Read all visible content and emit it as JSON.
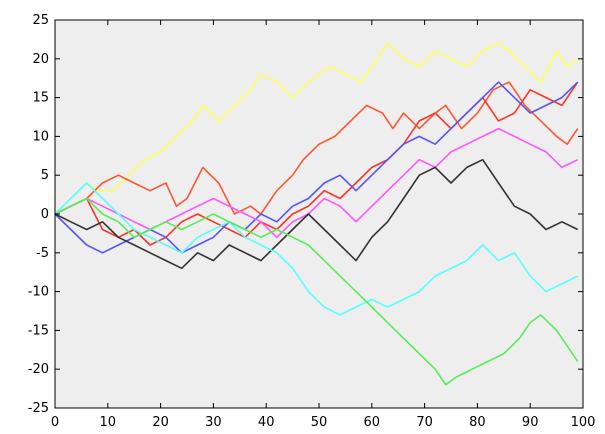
{
  "chart_data": {
    "type": "line",
    "title": "",
    "xlabel": "",
    "ylabel": "",
    "xlim": [
      0,
      100
    ],
    "ylim": [
      -25,
      25
    ],
    "x_ticks": [
      "0",
      "10",
      "20",
      "30",
      "40",
      "50",
      "60",
      "70",
      "80",
      "90",
      "100"
    ],
    "y_ticks": [
      "25",
      "20",
      "15",
      "10",
      "5",
      "0",
      "-5",
      "-10",
      "-15",
      "-20",
      "-25"
    ],
    "grid": false,
    "background_color": "#eeeeee",
    "series": [
      {
        "color": "#ffff55",
        "x": [
          0,
          3,
          6,
          8,
          11,
          14,
          17,
          20,
          23,
          26,
          28,
          31,
          34,
          37,
          39,
          42,
          45,
          48,
          52,
          55,
          58,
          61,
          63,
          66,
          69,
          72,
          75,
          78,
          81,
          84,
          86,
          89,
          92,
          95,
          97,
          99
        ],
        "y": [
          0,
          2,
          4,
          3,
          3,
          5,
          7,
          8,
          10,
          12,
          14,
          12,
          14,
          16,
          18,
          17,
          15,
          17,
          19,
          18,
          17,
          20,
          22,
          20,
          19,
          21,
          20,
          19,
          21,
          22,
          21,
          19,
          17,
          21,
          19,
          20
        ]
      },
      {
        "color": "#ff5533",
        "x": [
          0,
          3,
          6,
          9,
          12,
          15,
          18,
          21,
          23,
          25,
          28,
          31,
          34,
          37,
          39,
          42,
          45,
          47,
          50,
          53,
          56,
          59,
          62,
          64,
          66,
          69,
          72,
          74,
          77,
          80,
          83,
          86,
          89,
          92,
          95,
          97,
          99
        ],
        "y": [
          0,
          1,
          2,
          4,
          5,
          4,
          3,
          4,
          1,
          2,
          6,
          4,
          0,
          1,
          0,
          3,
          5,
          7,
          9,
          10,
          12,
          14,
          13,
          11,
          13,
          11,
          13,
          14,
          11,
          13,
          16,
          17,
          14,
          12,
          10,
          9,
          11
        ]
      },
      {
        "color": "#ff3322",
        "x": [
          0,
          3,
          6,
          9,
          12,
          15,
          18,
          21,
          24,
          27,
          30,
          33,
          36,
          39,
          42,
          45,
          48,
          51,
          54,
          57,
          60,
          63,
          66,
          69,
          72,
          75,
          78,
          81,
          84,
          87,
          90,
          93,
          96,
          99
        ],
        "y": [
          0,
          1,
          2,
          -2,
          -3,
          -2,
          -4,
          -3,
          -1,
          0,
          -1,
          -2,
          -3,
          -1,
          -2,
          0,
          1,
          3,
          2,
          4,
          6,
          7,
          9,
          12,
          13,
          11,
          13,
          15,
          12,
          13,
          16,
          15,
          14,
          17
        ]
      },
      {
        "color": "#5555ff",
        "x": [
          0,
          3,
          6,
          9,
          12,
          15,
          18,
          21,
          24,
          27,
          30,
          33,
          36,
          39,
          42,
          45,
          48,
          51,
          54,
          57,
          60,
          63,
          66,
          69,
          72,
          75,
          78,
          81,
          84,
          87,
          90,
          93,
          96,
          99
        ],
        "y": [
          0,
          -2,
          -4,
          -5,
          -4,
          -3,
          -2,
          -3,
          -5,
          -4,
          -3,
          -1,
          -2,
          0,
          -1,
          1,
          2,
          4,
          5,
          3,
          5,
          7,
          9,
          10,
          9,
          11,
          13,
          15,
          17,
          15,
          13,
          14,
          15,
          17
        ]
      },
      {
        "color": "#ff55ff",
        "x": [
          0,
          3,
          6,
          9,
          12,
          15,
          18,
          21,
          24,
          27,
          30,
          33,
          36,
          39,
          42,
          45,
          48,
          51,
          54,
          57,
          60,
          63,
          66,
          69,
          72,
          75,
          78,
          81,
          84,
          87,
          90,
          93,
          96,
          99
        ],
        "y": [
          0,
          1,
          2,
          1,
          0,
          -1,
          -2,
          -1,
          0,
          1,
          2,
          1,
          0,
          -1,
          -3,
          -1,
          0,
          2,
          1,
          -1,
          1,
          3,
          5,
          7,
          6,
          8,
          9,
          10,
          11,
          10,
          9,
          8,
          6,
          7
        ]
      },
      {
        "color": "#333333",
        "x": [
          0,
          3,
          6,
          9,
          12,
          15,
          18,
          21,
          24,
          27,
          30,
          33,
          36,
          39,
          42,
          45,
          48,
          51,
          54,
          57,
          60,
          63,
          66,
          69,
          72,
          75,
          78,
          81,
          84,
          87,
          90,
          93,
          96,
          99
        ],
        "y": [
          0,
          -1,
          -2,
          -1,
          -3,
          -4,
          -5,
          -6,
          -7,
          -5,
          -6,
          -4,
          -5,
          -6,
          -4,
          -2,
          0,
          -2,
          -4,
          -6,
          -3,
          -1,
          2,
          5,
          6,
          4,
          6,
          7,
          4,
          1,
          0,
          -2,
          -1,
          -2
        ]
      },
      {
        "color": "#55ffff",
        "x": [
          0,
          3,
          6,
          9,
          12,
          15,
          18,
          21,
          24,
          27,
          30,
          33,
          36,
          39,
          42,
          45,
          48,
          51,
          54,
          57,
          60,
          63,
          66,
          69,
          72,
          75,
          78,
          81,
          84,
          87,
          90,
          93,
          96,
          99
        ],
        "y": [
          0,
          2,
          4,
          2,
          0,
          -2,
          -3,
          -4,
          -5,
          -3,
          -2,
          -1,
          -3,
          -4,
          -5,
          -7,
          -10,
          -12,
          -13,
          -12,
          -11,
          -12,
          -11,
          -10,
          -8,
          -7,
          -6,
          -4,
          -6,
          -5,
          -8,
          -10,
          -9,
          -8
        ]
      },
      {
        "color": "#55ee55",
        "x": [
          0,
          3,
          6,
          9,
          12,
          15,
          18,
          21,
          24,
          27,
          30,
          33,
          36,
          39,
          42,
          45,
          48,
          51,
          54,
          57,
          60,
          63,
          66,
          69,
          72,
          74,
          76,
          79,
          82,
          85,
          88,
          90,
          92,
          95,
          97,
          99
        ],
        "y": [
          0,
          1,
          2,
          0,
          -1,
          -3,
          -2,
          -1,
          -2,
          -1,
          0,
          -1,
          -2,
          -3,
          -2,
          -3,
          -4,
          -6,
          -8,
          -10,
          -12,
          -14,
          -16,
          -18,
          -20,
          -22,
          -21,
          -20,
          -19,
          -18,
          -16,
          -14,
          -13,
          -15,
          -17,
          -19
        ]
      }
    ]
  }
}
